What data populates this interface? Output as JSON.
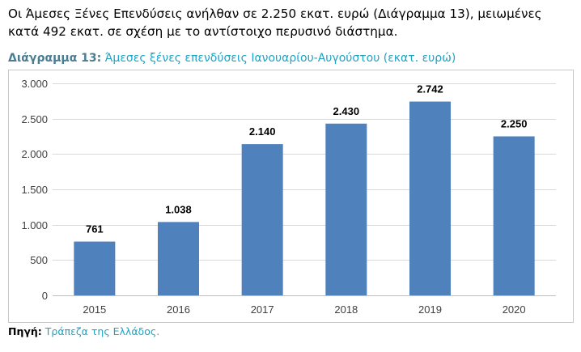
{
  "paragraph": {
    "line1": "Οι Άμεσες Ξένες Επενδύσεις ανήλθαν σε 2.250 εκατ. ευρώ (Διάγραμμα 13), μειωμένες",
    "line2": "κατά 492 εκατ. σε σχέση με το αντίστοιχο περυσινό διάστημα."
  },
  "caption": {
    "label": "Διάγραμμα 13:",
    "text": "Άμεσες ξένες επενδύσεις Ιανουαρίου-Αυγούστου (εκατ. ευρώ)"
  },
  "source": {
    "label": "Πηγή:",
    "text": "Τράπεζα της Ελλάδος."
  },
  "chart_data": {
    "type": "bar",
    "categories": [
      "2015",
      "2016",
      "2017",
      "2018",
      "2019",
      "2020"
    ],
    "values": [
      761,
      1038,
      2140,
      2430,
      2742,
      2250
    ],
    "data_labels": [
      "761",
      "1.038",
      "2.140",
      "2.430",
      "2.742",
      "2.250"
    ],
    "title": "",
    "xlabel": "",
    "ylabel": "",
    "ylim": [
      0,
      3000
    ],
    "y_ticks": [
      0,
      500,
      1000,
      1500,
      2000,
      2500,
      3000
    ],
    "y_tick_labels": [
      "0",
      "500",
      "1.000",
      "1.500",
      "2.000",
      "2.500",
      "3.000"
    ],
    "grid": true,
    "legend": "none",
    "bar_color": "#4f81bd",
    "grid_color": "#d9d9d9"
  }
}
